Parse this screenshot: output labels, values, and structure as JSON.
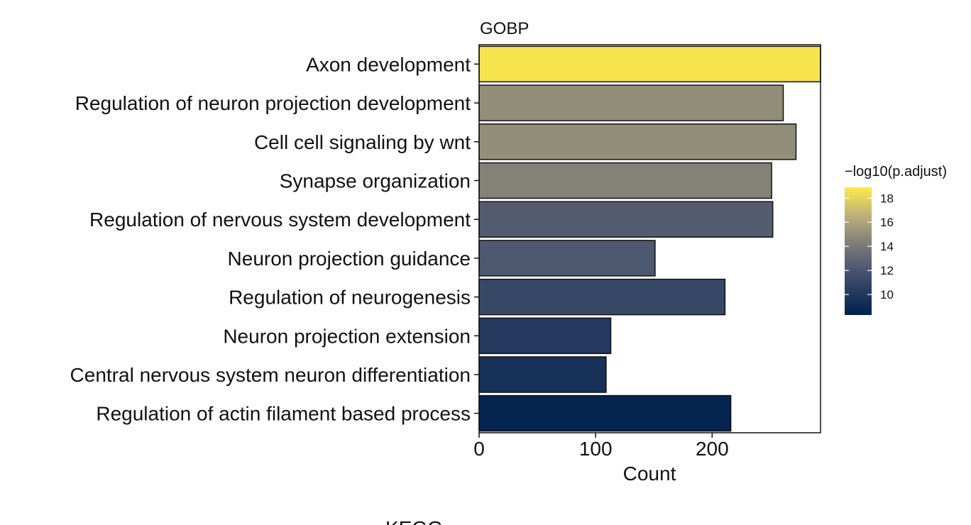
{
  "chart_data": {
    "type": "bar",
    "orientation": "horizontal",
    "title": "GOBP",
    "xlabel": "Count",
    "ylabel": "",
    "xlim": [
      0,
      293
    ],
    "x_ticks": [
      "0",
      "100",
      "200"
    ],
    "x_tick_values": [
      0,
      100,
      200
    ],
    "categories": [
      "Axon development",
      "Regulation of neuron projection development",
      "Cell cell signaling by wnt",
      "Synapse organization",
      "Regulation of nervous system development",
      "Neuron projection guidance",
      "Regulation of neurogenesis",
      "Neuron projection extension",
      "Central nervous system neuron differentiation",
      "Regulation of actin filament based process"
    ],
    "values": [
      293,
      261,
      272,
      251,
      252,
      151,
      211,
      113,
      109,
      216
    ],
    "color_metric": [
      18.6,
      15.0,
      15.0,
      14.4,
      12.4,
      12.2,
      11.1,
      10.1,
      9.5,
      8.6
    ],
    "colorbar": {
      "title": "−log10(p.adjust)",
      "ticks": [
        "18",
        "16",
        "14",
        "12",
        "10"
      ],
      "tick_values": [
        18,
        16,
        14,
        12,
        10
      ],
      "range": [
        8.3,
        18.9
      ],
      "colors": {
        "low": "#00204d",
        "mid": "#7c7b78",
        "high": "#ffea46"
      }
    },
    "grid": false,
    "legend_position": "right"
  },
  "next_panel": {
    "title": "KEGG"
  }
}
